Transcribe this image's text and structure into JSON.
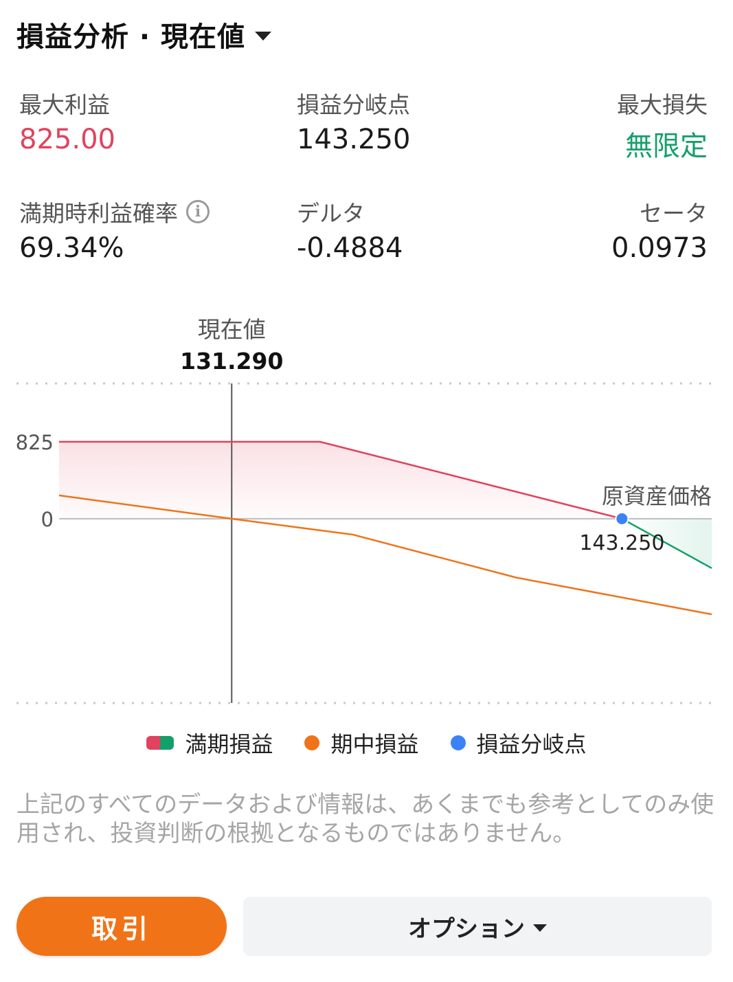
{
  "header": {
    "title": "損益分析 · 現在値"
  },
  "stats": {
    "max_profit": {
      "label": "最大利益",
      "value": "825.00",
      "color": "#e0435d"
    },
    "breakeven": {
      "label": "損益分岐点",
      "value": "143.250"
    },
    "max_loss": {
      "label": "最大損失",
      "value": "無限定",
      "color": "#14a06a"
    },
    "prob_profit": {
      "label": "満期時利益確率",
      "value": "69.34%"
    },
    "delta": {
      "label": "デルタ",
      "value": "-0.4884"
    },
    "theta": {
      "label": "セータ",
      "value": "0.0973"
    }
  },
  "chart_data": {
    "type": "line",
    "current_price": {
      "label": "現在値",
      "value": "131.290",
      "x": 131.29
    },
    "xlabel": "原資産価格",
    "y_ticks": [
      "825",
      "0"
    ],
    "xlim": [
      126.0,
      146.0
    ],
    "ylim": [
      -1975,
      1450
    ],
    "series": [
      {
        "name": "満期損益",
        "color_profit": "#e0435d",
        "color_loss": "#14a06a",
        "x": [
          126.0,
          134.0,
          143.25,
          146.0
        ],
        "y": [
          825,
          825,
          0,
          -530
        ]
      },
      {
        "name": "期中損益",
        "color": "#f07318",
        "x": [
          126.0,
          131.29,
          135.0,
          140.0,
          146.0
        ],
        "y": [
          250,
          0,
          -170,
          -630,
          -1025
        ]
      }
    ],
    "breakeven": {
      "name": "損益分岐点",
      "x": 143.25,
      "y": 0,
      "label": "143.250",
      "color": "#3b82f6"
    }
  },
  "disclaimer": "上記のすべてのデータおよび情報は、あくまでも参考としてのみ使用され、投資判断の根拠となるものではありません。",
  "buttons": {
    "trade": "取引",
    "options": "オプション"
  }
}
